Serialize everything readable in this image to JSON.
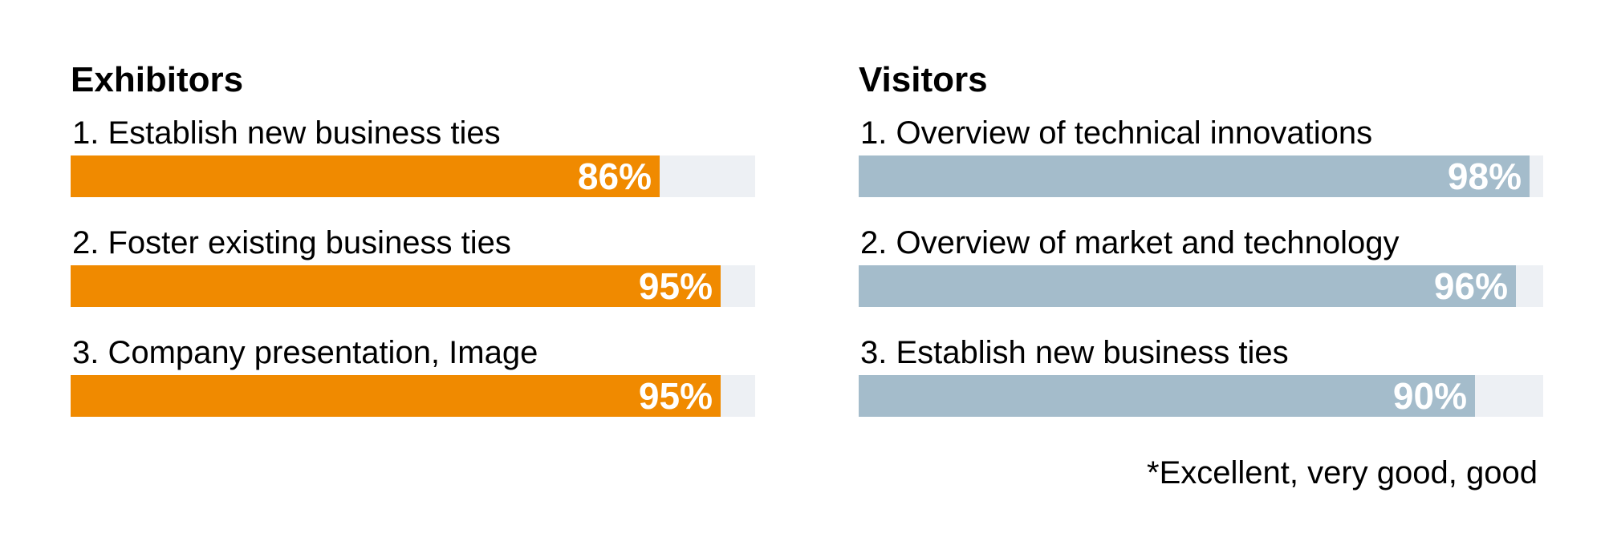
{
  "chart_data": [
    {
      "type": "bar",
      "orientation": "horizontal",
      "title": "Exhibitors",
      "categories": [
        "1. Establish new business ties",
        "2. Foster existing business ties",
        "3. Company presentation, Image"
      ],
      "values": [
        86,
        95,
        95
      ],
      "value_labels": [
        "86%",
        "95%",
        "95%"
      ],
      "xlim": [
        0,
        100
      ],
      "unit": "%",
      "bar_color": "#f08a00",
      "track_color": "#edf0f4"
    },
    {
      "type": "bar",
      "orientation": "horizontal",
      "title": "Visitors",
      "categories": [
        "1. Overview of technical innovations",
        "2. Overview of market and technology",
        "3. Establish new business ties"
      ],
      "values": [
        98,
        96,
        90
      ],
      "value_labels": [
        "98%",
        "96%",
        "90%"
      ],
      "xlim": [
        0,
        100
      ],
      "unit": "%",
      "bar_color": "#a4bccb",
      "track_color": "#edf0f4"
    }
  ],
  "footnote": "*Excellent, very good, good"
}
